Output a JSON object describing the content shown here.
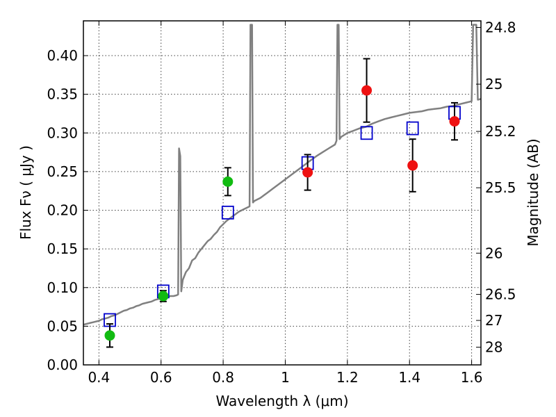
{
  "chart_data": {
    "type": "scatter",
    "xlabel": "Wavelength  λ (μm)",
    "ylabel": "Flux  Fν  ( μJy )",
    "ylabel_right": "Magnitude (AB)",
    "xlim": [
      0.35,
      1.63
    ],
    "ylim": [
      0.0,
      0.445
    ],
    "grid": true,
    "x_ticks": [
      "0.4",
      "0.6",
      "0.8",
      "1",
      "1.2",
      "1.4",
      "1.6"
    ],
    "y_ticks": [
      "0.00",
      "0.05",
      "0.10",
      "0.15",
      "0.20",
      "0.25",
      "0.30",
      "0.35",
      "0.40"
    ],
    "right_ticks": [
      {
        "label": "24.8",
        "flux": 0.4365
      },
      {
        "label": "25",
        "flux": 0.3631
      },
      {
        "label": "25.2",
        "flux": 0.302
      },
      {
        "label": "25.5",
        "flux": 0.2291
      },
      {
        "label": "26",
        "flux": 0.1445
      },
      {
        "label": "26.5",
        "flux": 0.0912
      },
      {
        "label": "27",
        "flux": 0.0575
      },
      {
        "label": "28",
        "flux": 0.0229
      }
    ],
    "colors": {
      "model": "#808080",
      "model_points": "#0000cc",
      "green_points": "#11bb11",
      "red_points": "#ee1111",
      "errorbar": "#000000"
    },
    "series": [
      {
        "marker": "open-square",
        "color": "#0000cc",
        "points": [
          {
            "x": 0.435,
            "y": 0.058
          },
          {
            "x": 0.607,
            "y": 0.095
          },
          {
            "x": 0.815,
            "y": 0.197
          },
          {
            "x": 1.072,
            "y": 0.261
          },
          {
            "x": 1.262,
            "y": 0.3
          },
          {
            "x": 1.41,
            "y": 0.306
          },
          {
            "x": 1.545,
            "y": 0.326
          }
        ]
      },
      {
        "marker": "filled-circle",
        "color": "#11bb11",
        "points": [
          {
            "x": 0.435,
            "y": 0.038,
            "err": 0.015
          },
          {
            "x": 0.607,
            "y": 0.089,
            "err": 0.007
          },
          {
            "x": 0.815,
            "y": 0.237,
            "err": 0.018
          }
        ]
      },
      {
        "marker": "filled-circle",
        "color": "#ee1111",
        "points": [
          {
            "x": 1.072,
            "y": 0.249,
            "err": 0.023
          },
          {
            "x": 1.262,
            "y": 0.355,
            "err": 0.041
          },
          {
            "x": 1.41,
            "y": 0.258,
            "err": 0.034
          },
          {
            "x": 1.545,
            "y": 0.315,
            "err": 0.024
          }
        ]
      }
    ],
    "model_spectrum": {
      "color": "#808080",
      "points": [
        [
          0.35,
          0.052
        ],
        [
          0.36,
          0.053
        ],
        [
          0.37,
          0.054
        ],
        [
          0.38,
          0.055
        ],
        [
          0.39,
          0.056
        ],
        [
          0.4,
          0.057
        ],
        [
          0.41,
          0.059
        ],
        [
          0.42,
          0.06
        ],
        [
          0.43,
          0.061
        ],
        [
          0.44,
          0.063
        ],
        [
          0.45,
          0.064
        ],
        [
          0.46,
          0.066
        ],
        [
          0.47,
          0.068
        ],
        [
          0.48,
          0.07
        ],
        [
          0.49,
          0.071
        ],
        [
          0.5,
          0.073
        ],
        [
          0.51,
          0.074
        ],
        [
          0.52,
          0.076
        ],
        [
          0.53,
          0.077
        ],
        [
          0.54,
          0.079
        ],
        [
          0.55,
          0.08
        ],
        [
          0.56,
          0.081
        ],
        [
          0.57,
          0.082
        ],
        [
          0.58,
          0.084
        ],
        [
          0.59,
          0.085
        ],
        [
          0.6,
          0.086
        ],
        [
          0.61,
          0.088
        ],
        [
          0.62,
          0.088
        ],
        [
          0.63,
          0.089
        ],
        [
          0.64,
          0.089
        ],
        [
          0.65,
          0.09
        ],
        [
          0.655,
          0.091
        ],
        [
          0.658,
          0.28
        ],
        [
          0.662,
          0.27
        ],
        [
          0.665,
          0.095
        ],
        [
          0.67,
          0.11
        ],
        [
          0.68,
          0.12
        ],
        [
          0.69,
          0.125
        ],
        [
          0.7,
          0.135
        ],
        [
          0.71,
          0.138
        ],
        [
          0.72,
          0.145
        ],
        [
          0.73,
          0.15
        ],
        [
          0.74,
          0.155
        ],
        [
          0.75,
          0.16
        ],
        [
          0.76,
          0.163
        ],
        [
          0.77,
          0.168
        ],
        [
          0.78,
          0.172
        ],
        [
          0.79,
          0.178
        ],
        [
          0.8,
          0.182
        ],
        [
          0.81,
          0.186
        ],
        [
          0.82,
          0.189
        ],
        [
          0.83,
          0.192
        ],
        [
          0.84,
          0.195
        ],
        [
          0.85,
          0.198
        ],
        [
          0.86,
          0.2
        ],
        [
          0.87,
          0.202
        ],
        [
          0.88,
          0.204
        ],
        [
          0.885,
          0.205
        ],
        [
          0.888,
          0.44
        ],
        [
          0.893,
          0.44
        ],
        [
          0.896,
          0.21
        ],
        [
          0.9,
          0.212
        ],
        [
          0.92,
          0.216
        ],
        [
          0.94,
          0.222
        ],
        [
          0.96,
          0.228
        ],
        [
          0.98,
          0.234
        ],
        [
          1.0,
          0.24
        ],
        [
          1.02,
          0.246
        ],
        [
          1.04,
          0.252
        ],
        [
          1.06,
          0.258
        ],
        [
          1.08,
          0.264
        ],
        [
          1.1,
          0.27
        ],
        [
          1.12,
          0.275
        ],
        [
          1.14,
          0.28
        ],
        [
          1.16,
          0.285
        ],
        [
          1.165,
          0.29
        ],
        [
          1.168,
          0.44
        ],
        [
          1.172,
          0.44
        ],
        [
          1.175,
          0.292
        ],
        [
          1.18,
          0.295
        ],
        [
          1.2,
          0.3
        ],
        [
          1.22,
          0.303
        ],
        [
          1.24,
          0.306
        ],
        [
          1.26,
          0.308
        ],
        [
          1.28,
          0.312
        ],
        [
          1.3,
          0.315
        ],
        [
          1.32,
          0.318
        ],
        [
          1.34,
          0.32
        ],
        [
          1.36,
          0.322
        ],
        [
          1.38,
          0.324
        ],
        [
          1.4,
          0.326
        ],
        [
          1.42,
          0.327
        ],
        [
          1.44,
          0.328
        ],
        [
          1.46,
          0.33
        ],
        [
          1.48,
          0.331
        ],
        [
          1.5,
          0.332
        ],
        [
          1.52,
          0.334
        ],
        [
          1.54,
          0.335
        ],
        [
          1.56,
          0.337
        ],
        [
          1.58,
          0.339
        ],
        [
          1.6,
          0.341
        ],
        [
          1.605,
          0.44
        ],
        [
          1.615,
          0.44
        ],
        [
          1.62,
          0.343
        ],
        [
          1.63,
          0.344
        ]
      ]
    }
  }
}
